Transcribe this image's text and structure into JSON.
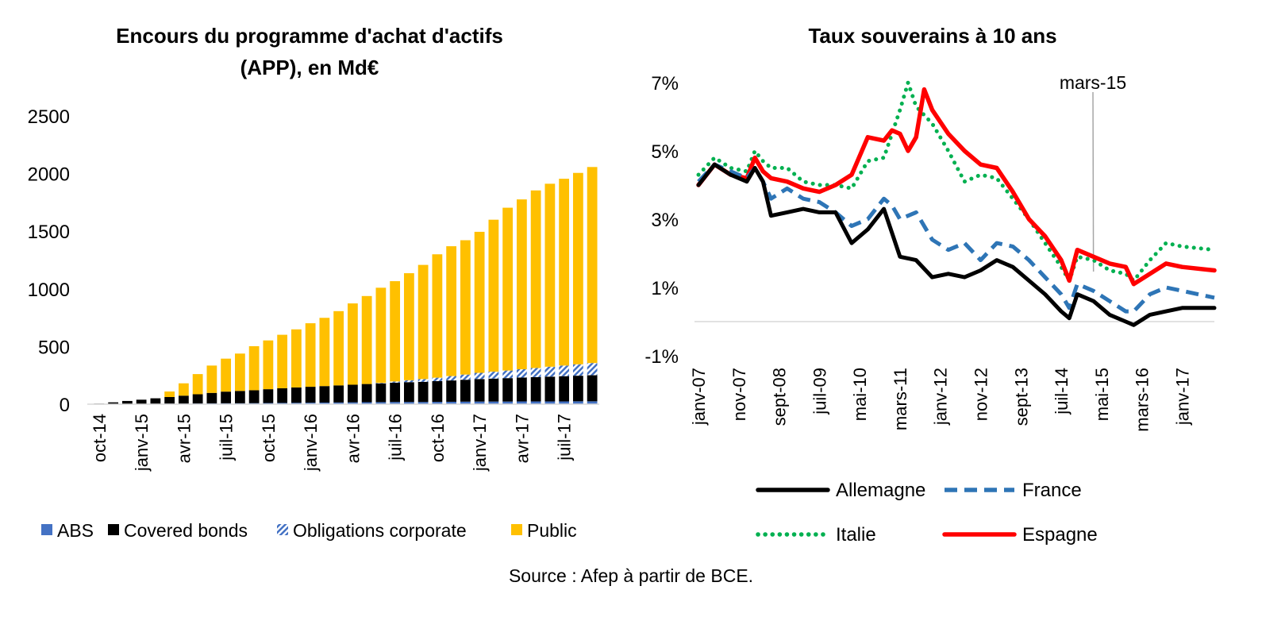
{
  "source": "Source : Afep à partir de BCE.",
  "chart_data": [
    {
      "type": "bar",
      "stacked": true,
      "title": "Encours du programme d'achat d'actifs",
      "subtitle": "(APP), en Md€",
      "xlabel": "",
      "ylabel": "",
      "ylim": [
        0,
        2500
      ],
      "yticks": [
        0,
        500,
        1000,
        1500,
        2000,
        2500
      ],
      "grid": false,
      "legend_position": "bottom",
      "xtick_labels": [
        "oct-14",
        "janv-15",
        "avr-15",
        "juil-15",
        "oct-15",
        "janv-16",
        "avr-16",
        "juil-16",
        "oct-16",
        "janv-17",
        "avr-17",
        "juil-17"
      ],
      "categories": [
        "oct-14",
        "nov-14",
        "déc-14",
        "janv-15",
        "févr-15",
        "mars-15",
        "avr-15",
        "mai-15",
        "juin-15",
        "juil-15",
        "août-15",
        "sept-15",
        "oct-15",
        "nov-15",
        "déc-15",
        "janv-16",
        "févr-16",
        "mars-16",
        "avr-16",
        "mai-16",
        "juin-16",
        "juil-16",
        "août-16",
        "sept-16",
        "oct-16",
        "nov-16",
        "déc-16",
        "janv-17",
        "févr-17",
        "mars-17",
        "avr-17",
        "mai-17",
        "juin-17",
        "juil-17",
        "août-17",
        "sept-17"
      ],
      "series": [
        {
          "name": "ABS",
          "color": "#4472C4",
          "pattern": "solid",
          "values": [
            0,
            1,
            2,
            3,
            4,
            5,
            5,
            6,
            7,
            8,
            8,
            9,
            10,
            11,
            12,
            13,
            14,
            15,
            16,
            17,
            18,
            19,
            19,
            19,
            20,
            21,
            22,
            23,
            23,
            23,
            24,
            24,
            24,
            24,
            25,
            25
          ]
        },
        {
          "name": "Covered bonds",
          "color": "#000000",
          "pattern": "solid",
          "values": [
            5,
            15,
            26,
            36,
            47,
            57,
            69,
            80,
            91,
            101,
            107,
            112,
            120,
            127,
            133,
            138,
            143,
            148,
            153,
            158,
            163,
            168,
            172,
            175,
            180,
            185,
            190,
            195,
            199,
            203,
            207,
            211,
            215,
            219,
            222,
            226
          ]
        },
        {
          "name": "Obligations corporate",
          "color": "#4472C4",
          "pattern": "hatched",
          "values": [
            0,
            0,
            0,
            0,
            0,
            0,
            0,
            0,
            0,
            0,
            0,
            0,
            0,
            0,
            0,
            0,
            0,
            0,
            0,
            0,
            4,
            10,
            17,
            24,
            30,
            38,
            45,
            54,
            60,
            66,
            72,
            79,
            86,
            92,
            99,
            106
          ]
        },
        {
          "name": "Public",
          "color": "#FFC000",
          "pattern": "solid",
          "values": [
            0,
            0,
            0,
            0,
            0,
            48,
            107,
            175,
            237,
            286,
            324,
            382,
            423,
            464,
            504,
            551,
            592,
            644,
            705,
            763,
            825,
            870,
            928,
            990,
            1070,
            1126,
            1165,
            1223,
            1318,
            1412,
            1473,
            1540,
            1587,
            1620,
            1660,
            1700
          ]
        }
      ]
    },
    {
      "type": "line",
      "title": "Taux souverains à 10 ans",
      "xlabel": "",
      "ylabel": "",
      "ylim": [
        -1,
        7
      ],
      "yticks": [
        "-1%",
        "1%",
        "3%",
        "5%",
        "7%"
      ],
      "grid": false,
      "legend_position": "bottom",
      "xtick_labels": [
        "janv-07",
        "nov-07",
        "sept-08",
        "juil-09",
        "mai-10",
        "mars-11",
        "janv-12",
        "nov-12",
        "sept-13",
        "juil-14",
        "mai-15",
        "mars-16",
        "janv-17"
      ],
      "annotation": {
        "label": "mars-15",
        "x": "mars-15"
      },
      "x_range": [
        "janv-07",
        "sept-17"
      ],
      "series": [
        {
          "name": "Allemagne",
          "color": "#000000",
          "style": "solid",
          "points": [
            [
              0,
              4.0
            ],
            [
              4,
              4.6
            ],
            [
              8,
              4.3
            ],
            [
              12,
              4.1
            ],
            [
              14,
              4.5
            ],
            [
              16,
              4.1
            ],
            [
              18,
              3.1
            ],
            [
              22,
              3.2
            ],
            [
              26,
              3.3
            ],
            [
              30,
              3.2
            ],
            [
              34,
              3.2
            ],
            [
              38,
              2.3
            ],
            [
              42,
              2.7
            ],
            [
              46,
              3.3
            ],
            [
              48,
              2.6
            ],
            [
              50,
              1.9
            ],
            [
              54,
              1.8
            ],
            [
              58,
              1.3
            ],
            [
              62,
              1.4
            ],
            [
              66,
              1.3
            ],
            [
              70,
              1.5
            ],
            [
              74,
              1.8
            ],
            [
              78,
              1.6
            ],
            [
              82,
              1.2
            ],
            [
              86,
              0.8
            ],
            [
              90,
              0.3
            ],
            [
              92,
              0.1
            ],
            [
              94,
              0.8
            ],
            [
              98,
              0.6
            ],
            [
              102,
              0.2
            ],
            [
              106,
              0.0
            ],
            [
              108,
              -0.1
            ],
            [
              112,
              0.2
            ],
            [
              116,
              0.3
            ],
            [
              120,
              0.4
            ],
            [
              128,
              0.4
            ]
          ]
        },
        {
          "name": "France",
          "color": "#2E75B6",
          "style": "dashed",
          "points": [
            [
              0,
              4.1
            ],
            [
              4,
              4.6
            ],
            [
              8,
              4.4
            ],
            [
              12,
              4.2
            ],
            [
              14,
              4.5
            ],
            [
              16,
              4.1
            ],
            [
              18,
              3.6
            ],
            [
              22,
              3.9
            ],
            [
              26,
              3.6
            ],
            [
              30,
              3.5
            ],
            [
              34,
              3.2
            ],
            [
              38,
              2.8
            ],
            [
              42,
              3.0
            ],
            [
              46,
              3.6
            ],
            [
              48,
              3.4
            ],
            [
              50,
              3.0
            ],
            [
              54,
              3.2
            ],
            [
              58,
              2.4
            ],
            [
              62,
              2.1
            ],
            [
              66,
              2.3
            ],
            [
              70,
              1.8
            ],
            [
              74,
              2.3
            ],
            [
              78,
              2.2
            ],
            [
              82,
              1.8
            ],
            [
              86,
              1.3
            ],
            [
              90,
              0.8
            ],
            [
              92,
              0.4
            ],
            [
              94,
              1.1
            ],
            [
              98,
              0.9
            ],
            [
              102,
              0.6
            ],
            [
              106,
              0.3
            ],
            [
              108,
              0.3
            ],
            [
              112,
              0.8
            ],
            [
              116,
              1.0
            ],
            [
              120,
              0.9
            ],
            [
              128,
              0.7
            ]
          ]
        },
        {
          "name": "Italie",
          "color": "#00B050",
          "style": "dotted",
          "points": [
            [
              0,
              4.3
            ],
            [
              4,
              4.8
            ],
            [
              8,
              4.5
            ],
            [
              12,
              4.4
            ],
            [
              14,
              5.0
            ],
            [
              16,
              4.7
            ],
            [
              18,
              4.5
            ],
            [
              22,
              4.5
            ],
            [
              26,
              4.1
            ],
            [
              30,
              4.0
            ],
            [
              34,
              4.0
            ],
            [
              38,
              3.9
            ],
            [
              42,
              4.7
            ],
            [
              46,
              4.8
            ],
            [
              48,
              5.5
            ],
            [
              50,
              6.2
            ],
            [
              52,
              7.0
            ],
            [
              54,
              6.3
            ],
            [
              58,
              5.8
            ],
            [
              62,
              5.0
            ],
            [
              66,
              4.1
            ],
            [
              70,
              4.3
            ],
            [
              74,
              4.2
            ],
            [
              78,
              3.6
            ],
            [
              82,
              3.0
            ],
            [
              86,
              2.3
            ],
            [
              90,
              1.6
            ],
            [
              92,
              1.2
            ],
            [
              94,
              1.9
            ],
            [
              98,
              1.8
            ],
            [
              102,
              1.5
            ],
            [
              106,
              1.4
            ],
            [
              108,
              1.2
            ],
            [
              112,
              1.8
            ],
            [
              116,
              2.3
            ],
            [
              120,
              2.2
            ],
            [
              128,
              2.1
            ]
          ]
        },
        {
          "name": "Espagne",
          "color": "#FF0000",
          "style": "solid",
          "points": [
            [
              0,
              4.0
            ],
            [
              4,
              4.6
            ],
            [
              8,
              4.3
            ],
            [
              12,
              4.2
            ],
            [
              14,
              4.8
            ],
            [
              16,
              4.4
            ],
            [
              18,
              4.2
            ],
            [
              22,
              4.1
            ],
            [
              26,
              3.9
            ],
            [
              30,
              3.8
            ],
            [
              34,
              4.0
            ],
            [
              38,
              4.3
            ],
            [
              42,
              5.4
            ],
            [
              46,
              5.3
            ],
            [
              48,
              5.6
            ],
            [
              50,
              5.5
            ],
            [
              52,
              5.0
            ],
            [
              54,
              5.4
            ],
            [
              56,
              6.8
            ],
            [
              58,
              6.2
            ],
            [
              62,
              5.5
            ],
            [
              66,
              5.0
            ],
            [
              70,
              4.6
            ],
            [
              74,
              4.5
            ],
            [
              78,
              3.8
            ],
            [
              82,
              3.0
            ],
            [
              86,
              2.5
            ],
            [
              90,
              1.8
            ],
            [
              92,
              1.2
            ],
            [
              94,
              2.1
            ],
            [
              98,
              1.9
            ],
            [
              102,
              1.7
            ],
            [
              106,
              1.6
            ],
            [
              108,
              1.1
            ],
            [
              112,
              1.4
            ],
            [
              116,
              1.7
            ],
            [
              120,
              1.6
            ],
            [
              128,
              1.5
            ]
          ]
        }
      ]
    }
  ]
}
